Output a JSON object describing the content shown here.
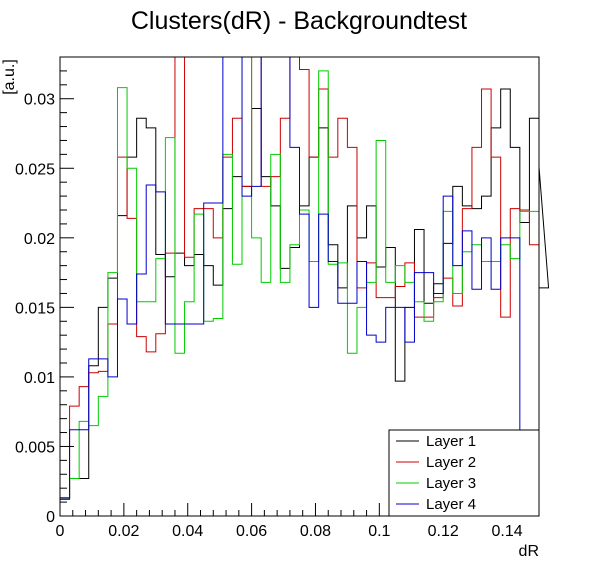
{
  "chart_data": {
    "type": "line",
    "title": "Clusters(dR) - Backgroundtest",
    "xlabel": "dR",
    "ylabel": "[a.u.]",
    "xlim": [
      0,
      0.15
    ],
    "ylim": [
      0,
      0.033
    ],
    "x_ticks": [
      "0",
      "0.02",
      "0.04",
      "0.06",
      "0.08",
      "0.1",
      "0.12",
      "0.14"
    ],
    "y_ticks": [
      "0",
      "0.005",
      "0.01",
      "0.015",
      "0.02",
      "0.025",
      "0.03"
    ],
    "grid": false,
    "legend_position": "bottom-right",
    "bin_width": 0.003,
    "series": [
      {
        "name": "Layer 1",
        "color": "#000000",
        "values": [
          0.0012,
          0.0027,
          0.0027,
          0.0108,
          0.015,
          0.0171,
          0.0216,
          0.0258,
          0.0286,
          0.0279,
          0.0188,
          0.0172,
          0.0189,
          0.018,
          0.0188,
          0.018,
          0.0166,
          0.0221,
          0.0244,
          0.0237,
          0.0293,
          0.0244,
          0.0223,
          0.0178,
          0.0193,
          0.0223,
          0.0258,
          0.0279,
          0.0195,
          0.0164,
          0.0223,
          0.02,
          0.0223,
          0.0179,
          0.0193,
          0.0097,
          0.015,
          0.0206,
          0.0153,
          0.0167,
          0.0196,
          0.0237,
          0.0223,
          0.0221,
          0.023,
          0.0279,
          0.0307,
          0.0265,
          0.0211,
          0.0286,
          0.0251,
          0.0164
        ]
      },
      {
        "name": "Layer 2",
        "color": "#cc0000",
        "values": [
          0.0013,
          0.0079,
          0.0093,
          0.0103,
          0.0104,
          0.0138,
          0.0258,
          0.0214,
          0.0129,
          0.0118,
          0.0131,
          0.0189,
          0.033,
          0.0186,
          0.0221,
          0.0221,
          0.02,
          0.0258,
          0.0286,
          0.0237,
          0.033,
          0.0237,
          0.0244,
          0.0286,
          0.033,
          0.0321,
          0.0258,
          0.0307,
          0.0258,
          0.0286,
          0.0265,
          0.0164,
          0.0182,
          0.0157,
          0.0157,
          0.0165,
          0.0182,
          0.0143,
          0.0143,
          0.0157,
          0.0171,
          0.0151,
          0.0221,
          0.0265,
          0.0307,
          0.0258,
          0.0143,
          0.0221,
          0.022,
          0.0195,
          0.0195
        ]
      },
      {
        "name": "Layer 3",
        "color": "#00cc00",
        "values": [
          0.0013,
          0.0027,
          0.0068,
          0.0065,
          0.0086,
          0.0175,
          0.0308,
          0.025,
          0.0154,
          0.0154,
          0.0185,
          0.0272,
          0.0117,
          0.0154,
          0.0217,
          0.014,
          0.0142,
          0.026,
          0.0181,
          0.033,
          0.02,
          0.0168,
          0.026,
          0.0168,
          0.0195,
          0.022,
          0.0183,
          0.032,
          0.0181,
          0.0182,
          0.0117,
          0.015,
          0.0168,
          0.027,
          0.0168,
          0.018,
          0.0168,
          0.0154,
          0.014,
          0.0154,
          0.0219,
          0.016,
          0.019,
          0.0195,
          0.0183,
          0.0183,
          0.0195,
          0.0185,
          0.0219,
          0.0219
        ]
      },
      {
        "name": "Layer 4",
        "color": "#0000cc",
        "values": [
          0.0013,
          0.0062,
          0.0062,
          0.0113,
          0.0113,
          0.01,
          0.0156,
          0.0138,
          0.0174,
          0.0238,
          0.0233,
          0.0138,
          0.0138,
          0.0138,
          0.0138,
          0.0225,
          0.0225,
          0.033,
          0.033,
          0.023,
          0.0237,
          0.033,
          0.033,
          0.033,
          0.0265,
          0.0217,
          0.015,
          0.0217,
          0.0183,
          0.0153,
          0.0153,
          0.0183,
          0.013,
          0.0125,
          0.015,
          0.015,
          0.0125,
          0.0175,
          0.0175,
          0.016,
          0.023,
          0.018,
          0.0205,
          0.0163,
          0.02,
          0.0163,
          0.02,
          0.02
        ]
      }
    ]
  }
}
